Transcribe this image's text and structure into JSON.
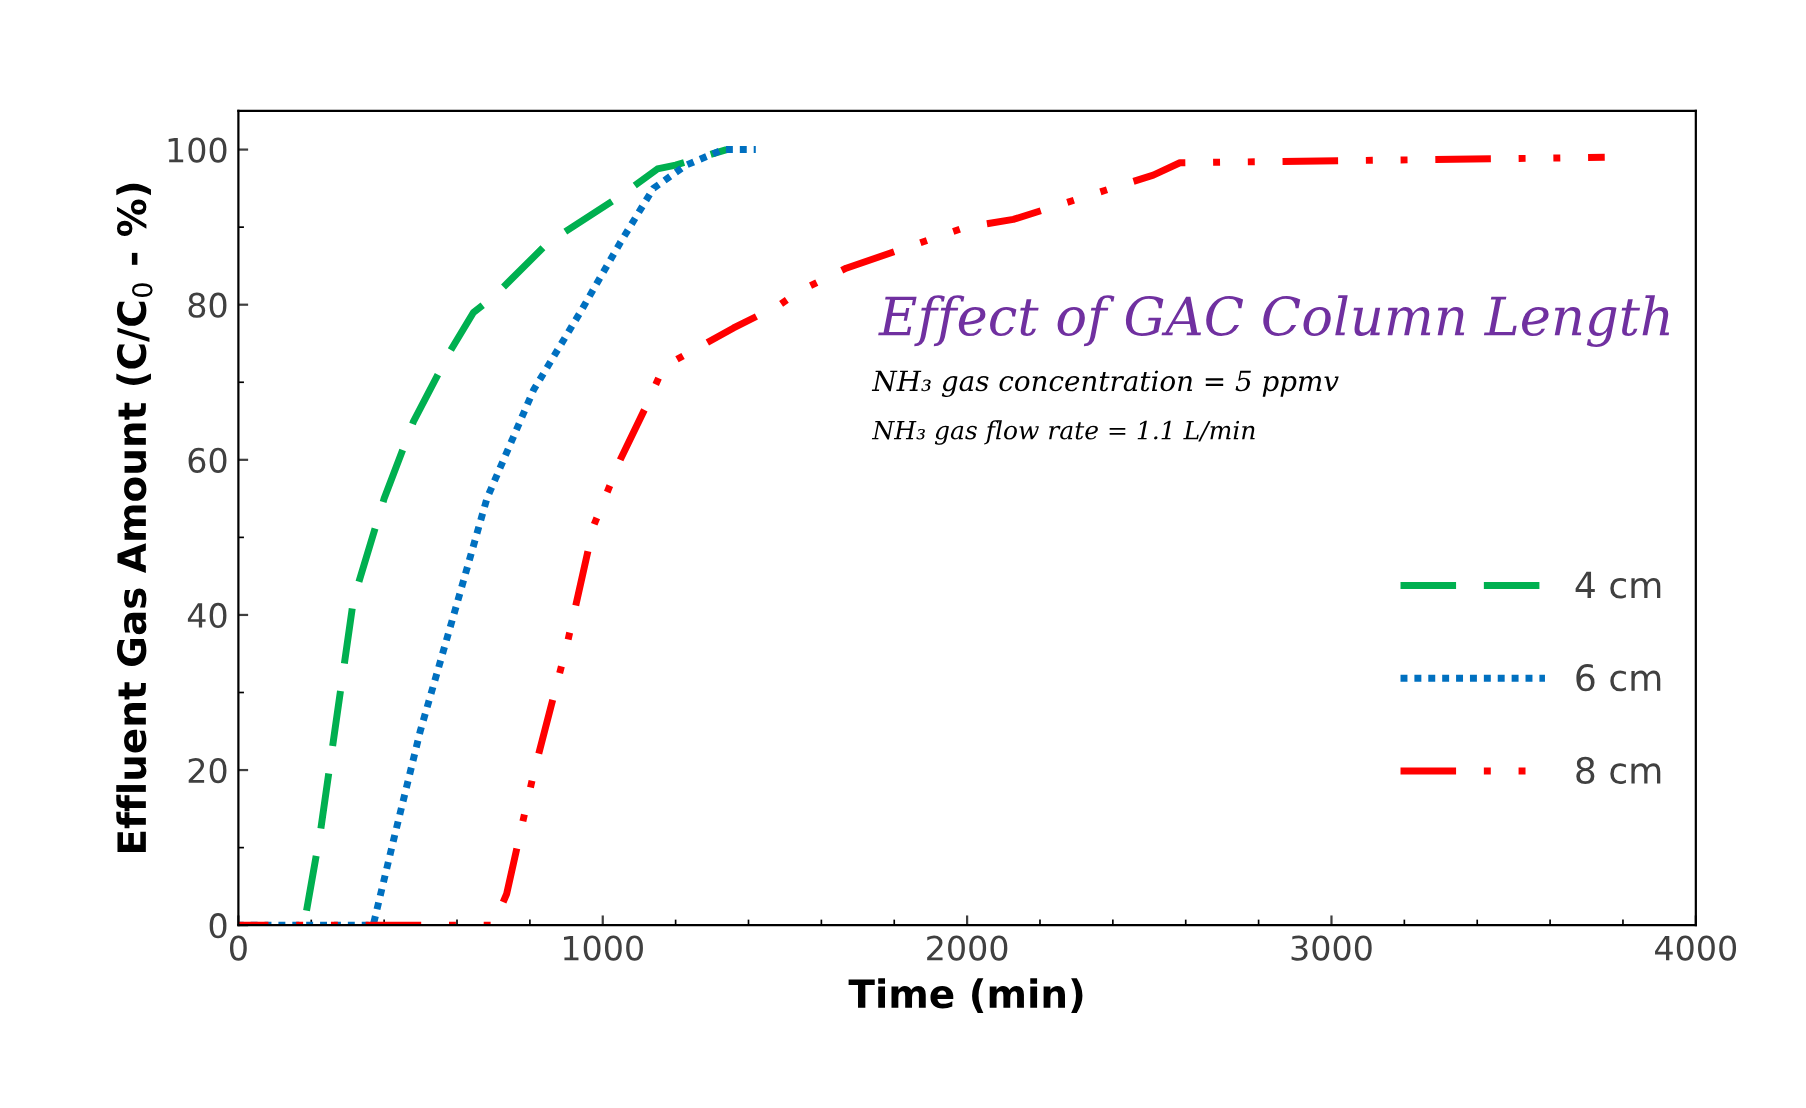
{
  "chart_data": {
    "type": "line",
    "title": "Effect of GAC Column Length",
    "xlabel": "Time (min)",
    "ylabel": "Effluent Gas Amount (C/C$_{0}$ - %)",
    "annotations": [
      "NH₃ gas concentration = 5 ppmv",
      "NH₃ gas flow rate = 1.1 L/min"
    ],
    "xlim": [
      0,
      4000
    ],
    "xticks": [
      0,
      1000,
      2000,
      3000,
      4000
    ],
    "ylim": [
      0,
      105
    ],
    "yticks": [
      0,
      20,
      40,
      60,
      80,
      100
    ],
    "legend": "right",
    "grid": false,
    "series": [
      {
        "name": "4 cm",
        "color": "#00b050",
        "line_style": "dashed",
        "x": [
          180,
          225,
          316,
          400,
          481,
          581,
          645,
          700,
          850,
          1048,
          1150,
          1200,
          1340
        ],
        "values": [
          0,
          12,
          42,
          55,
          65,
          74,
          79,
          81,
          88,
          94,
          97.5,
          98,
          100
        ]
      },
      {
        "name": "6 cm",
        "color": "#0070c0",
        "line_style": "dotted",
        "x": [
          0,
          370,
          426,
          499,
          591,
          682,
          810,
          938,
          1048,
          1139,
          1229,
          1330,
          1420
        ],
        "values": [
          0,
          0,
          11,
          25,
          40,
          55,
          69,
          79,
          88,
          95,
          98,
          100,
          100
        ]
      },
      {
        "name": "8 cm",
        "color": "#ff0000",
        "line_style": "dashdotdot",
        "x": [
          0,
          700,
          736,
          810,
          901,
          975,
          1048,
          1120,
          1167,
          1359,
          1486,
          1541,
          1668,
          1997,
          2127,
          2511,
          2584,
          3750
        ],
        "values": [
          0,
          0,
          4,
          19.5,
          36,
          51.5,
          60,
          67,
          72,
          77,
          80,
          81.8,
          84.7,
          90,
          91,
          96.7,
          98.3,
          99
        ]
      }
    ]
  }
}
